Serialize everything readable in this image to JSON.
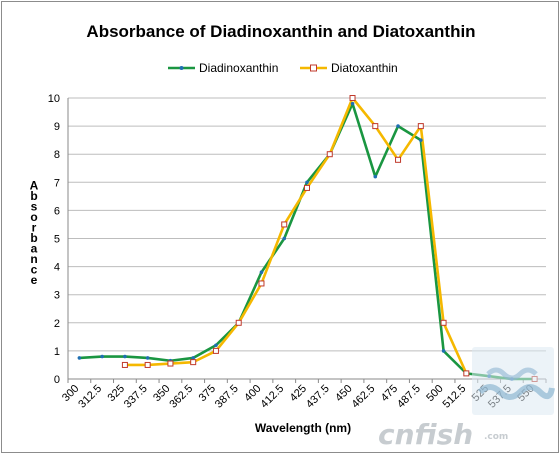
{
  "chart_data": {
    "type": "line",
    "title": "Absorbance of Diadinoxanthin and Diatoxanthin",
    "xlabel": "Wavelength (nm)",
    "ylabel": "Absorbance",
    "ylim": [
      0,
      10
    ],
    "yticks": [
      "0",
      "1",
      "2",
      "3",
      "4",
      "5",
      "6",
      "7",
      "8",
      "9",
      "10"
    ],
    "categories": [
      "300",
      "312.5",
      "325",
      "337.5",
      "350",
      "362.5",
      "375",
      "387.5",
      "400",
      "412.5",
      "425",
      "437.5",
      "450",
      "462.5",
      "475",
      "487.5",
      "500",
      "512.5",
      "525",
      "537.5",
      "550"
    ],
    "grid": true,
    "legend_position": "top",
    "series": [
      {
        "name": "Diadinoxanthin",
        "color": "#1a9641",
        "marker": "dot",
        "values": [
          0.75,
          0.8,
          0.8,
          0.75,
          0.65,
          0.75,
          1.2,
          2.0,
          3.8,
          5.0,
          7.0,
          8.0,
          9.8,
          7.2,
          9.0,
          8.5,
          1.0,
          0.2,
          0.1,
          0.0,
          0.0
        ]
      },
      {
        "name": "Diatoxanthin",
        "color": "#f5b800",
        "marker": "square",
        "values": [
          null,
          null,
          0.5,
          0.5,
          0.55,
          0.6,
          1.0,
          2.0,
          3.4,
          5.5,
          6.8,
          8.0,
          10.0,
          9.0,
          7.8,
          9.0,
          2.0,
          0.2,
          null,
          null,
          0.0
        ]
      }
    ]
  },
  "watermark": {
    "text": "cnfish",
    "sub": ".com"
  }
}
